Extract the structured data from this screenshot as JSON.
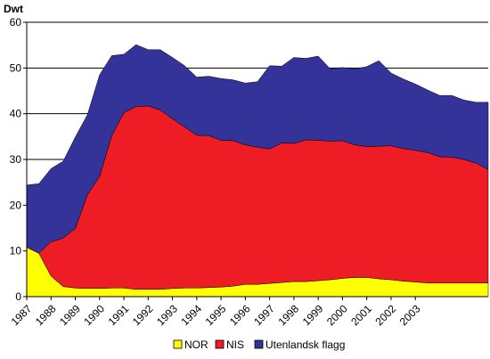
{
  "chart_data": {
    "type": "area",
    "stacked": true,
    "ylabel": "Dwt",
    "xlabel": "",
    "ylim": [
      0,
      60
    ],
    "yticks": [
      0,
      10,
      20,
      30,
      40,
      50,
      60
    ],
    "grid": "horizontal",
    "legend_position": "bottom",
    "x_labels": [
      "1987",
      "1988",
      "1989",
      "1990",
      "1991",
      "1992",
      "1993",
      "1994",
      "1995",
      "1996",
      "1997",
      "1998",
      "1999",
      "2000",
      "2001",
      "2002",
      "2003"
    ],
    "x_label_positions": [
      0,
      2,
      4,
      6,
      8,
      10,
      12,
      14,
      16,
      18,
      20,
      22,
      24,
      26,
      28,
      30,
      32
    ],
    "x": [
      0,
      1,
      2,
      3,
      4,
      5,
      6,
      7,
      8,
      9,
      10,
      11,
      12,
      13,
      14,
      15,
      16,
      17,
      18,
      19,
      20,
      21,
      22,
      23,
      24,
      25,
      26,
      27,
      28,
      29,
      30,
      31,
      32,
      33,
      34,
      35,
      36,
      37,
      38
    ],
    "colors": {
      "NOR": "#ffff00",
      "NIS": "#ee1c24",
      "Utenlandsk flagg": "#333399"
    },
    "series": [
      {
        "name": "NOR",
        "values": [
          10.8,
          9.5,
          4.5,
          2.2,
          1.9,
          1.8,
          1.8,
          1.9,
          1.9,
          1.6,
          1.6,
          1.6,
          1.8,
          1.9,
          1.9,
          2.0,
          2.1,
          2.3,
          2.7,
          2.7,
          2.9,
          3.1,
          3.3,
          3.3,
          3.5,
          3.7,
          4.0,
          4.2,
          4.2,
          3.9,
          3.7,
          3.4,
          3.2,
          3.0,
          3.0,
          3.0,
          3.0,
          3.0,
          3.0
        ]
      },
      {
        "name": "NIS",
        "values": [
          0.0,
          0.0,
          7.5,
          10.6,
          13.0,
          20.5,
          24.5,
          33.3,
          38.3,
          40.0,
          40.1,
          39.2,
          37.1,
          35.2,
          33.4,
          33.2,
          32.1,
          31.8,
          30.5,
          30.0,
          29.4,
          30.5,
          30.2,
          31.0,
          30.7,
          30.3,
          30.1,
          29.0,
          28.6,
          29.0,
          29.3,
          29.0,
          28.8,
          28.5,
          27.6,
          27.5,
          27.0,
          26.2,
          24.8
        ]
      },
      {
        "name": "Utenlandsk flagg",
        "values": [
          13.6,
          15.2,
          16.0,
          16.8,
          20.0,
          17.5,
          22.2,
          17.5,
          12.8,
          13.5,
          12.3,
          13.2,
          13.4,
          13.4,
          12.7,
          13.0,
          13.5,
          13.3,
          13.5,
          14.3,
          18.2,
          16.8,
          18.8,
          17.8,
          18.4,
          15.8,
          16.0,
          16.6,
          17.5,
          18.7,
          15.9,
          15.2,
          14.5,
          13.7,
          13.4,
          13.5,
          13.0,
          13.3,
          14.7
        ]
      }
    ]
  },
  "legend": {
    "items": [
      {
        "label": "NOR",
        "color": "#ffff00"
      },
      {
        "label": "NIS",
        "color": "#ee1c24"
      },
      {
        "label": "Utenlandsk flagg",
        "color": "#333399"
      }
    ]
  }
}
